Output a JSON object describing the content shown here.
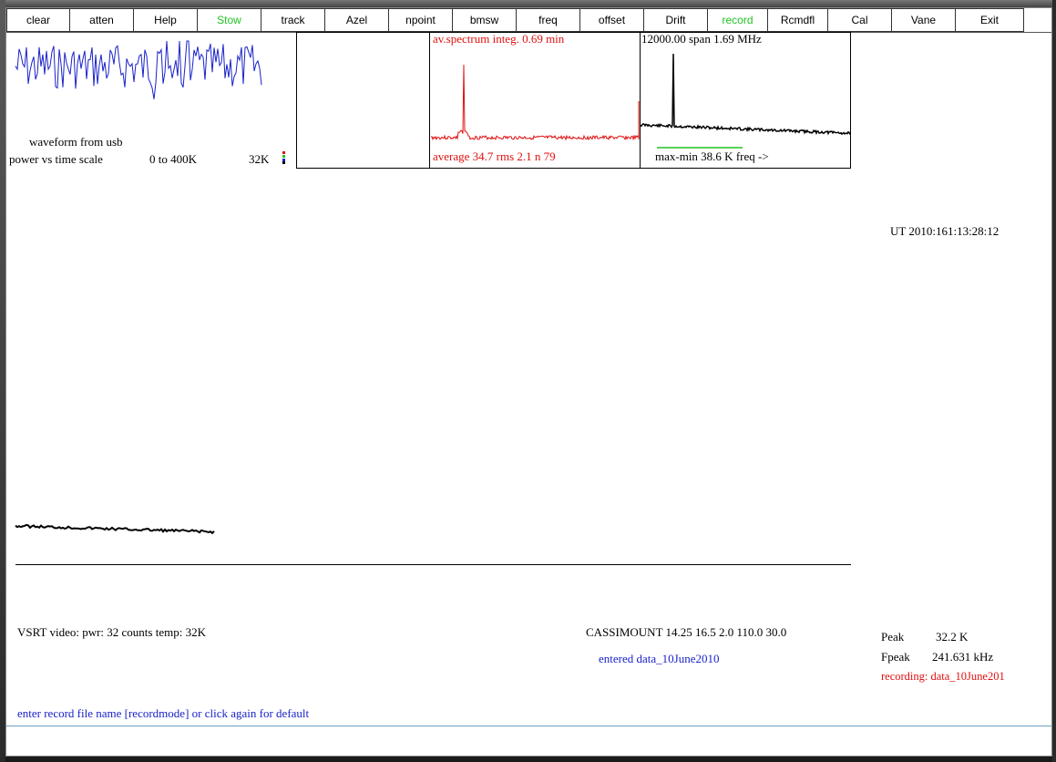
{
  "toolbar": {
    "buttons": [
      {
        "label": "clear",
        "color": "#000000"
      },
      {
        "label": "atten",
        "color": "#000000"
      },
      {
        "label": "Help",
        "color": "#000000"
      },
      {
        "label": "Stow",
        "color": "#22c322"
      },
      {
        "label": "track",
        "color": "#000000"
      },
      {
        "label": "Azel",
        "color": "#000000"
      },
      {
        "label": "npoint",
        "color": "#000000"
      },
      {
        "label": "bmsw",
        "color": "#000000"
      },
      {
        "label": "freq",
        "color": "#000000"
      },
      {
        "label": "offset",
        "color": "#000000"
      },
      {
        "label": "Drift",
        "color": "#000000"
      },
      {
        "label": "record",
        "color": "#22c322"
      },
      {
        "label": "Rcmdfl",
        "color": "#000000"
      },
      {
        "label": "Cal",
        "color": "#000000"
      },
      {
        "label": "Vane",
        "color": "#000000"
      },
      {
        "label": "Exit",
        "color": "#000000"
      }
    ]
  },
  "waveform": {
    "label": "waveform from usb",
    "scale_label": "power vs time scale",
    "scale_range": "0 to  400K",
    "scale_value": "32K"
  },
  "spectrum": {
    "title": "av.spectrum integ.  0.69 min",
    "stats": "average  34.7 rms    2.1 n  79"
  },
  "span": {
    "title": "12000.00 span   1.69 MHz",
    "footer": "max-min  38.6 K   freq ->"
  },
  "ut_time": "UT 2010:161:13:28:12",
  "status": {
    "video": "VSRT video:  pwr:   32 counts temp:   32K",
    "mount": "CASSIMOUNT 14.25 16.5 2.0 110.0 30.0",
    "entered": "entered data_10June2010",
    "peak_label": "Peak",
    "peak_value": "32.2 K",
    "fpeak_label": "Fpeak",
    "fpeak_value": "241.631 kHz",
    "recording": "recording: data_10June201"
  },
  "prompt": "enter record file name [recordmode] or click again for default",
  "colors": {
    "green": "#22c322",
    "red": "#e01010",
    "blue": "#1a22c8"
  }
}
